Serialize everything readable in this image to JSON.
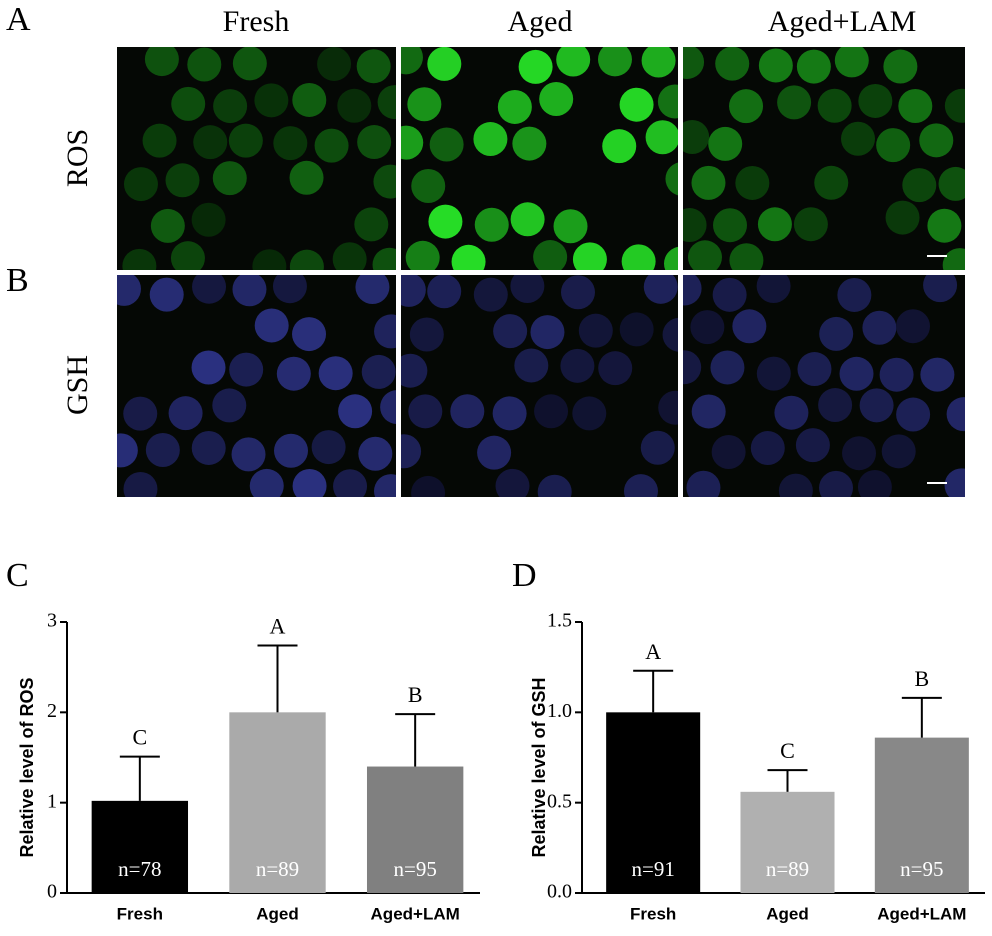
{
  "figure": {
    "panel_labels": [
      "A",
      "B",
      "C",
      "D"
    ],
    "columns": [
      "Fresh",
      "Aged",
      "Aged+LAM"
    ],
    "rows": [
      "ROS",
      "GSH"
    ]
  },
  "chart_data": [
    {
      "type": "bar",
      "ylabel": "Relative level of ROS",
      "categories": [
        "Fresh",
        "Aged",
        "Aged+LAM"
      ],
      "series": [
        {
          "name": "ROS",
          "colors": [
            "#000000",
            "#aaaaaa",
            "#808080"
          ],
          "values": [
            1.02,
            2.0,
            1.4
          ],
          "errors": [
            0.49,
            0.74,
            0.58
          ]
        }
      ],
      "significance_labels": [
        "C",
        "A",
        "B"
      ],
      "n_labels": [
        "n=78",
        "n=89",
        "n=95"
      ],
      "ylim": [
        0,
        3
      ],
      "yticks": [
        0,
        1,
        2,
        3
      ]
    },
    {
      "type": "bar",
      "ylabel": "Relative level of GSH",
      "categories": [
        "Fresh",
        "Aged",
        "Aged+LAM"
      ],
      "series": [
        {
          "name": "GSH",
          "colors": [
            "#000000",
            "#b0b0b0",
            "#888888"
          ],
          "values": [
            1.0,
            0.56,
            0.86
          ],
          "errors": [
            0.23,
            0.12,
            0.22
          ]
        }
      ],
      "significance_labels": [
        "A",
        "C",
        "B"
      ],
      "n_labels": [
        "n=91",
        "n=89",
        "n=95"
      ],
      "ylim": [
        0,
        1.5
      ],
      "yticks": [
        {
          "value": 0,
          "label": "0.0"
        },
        0.5,
        {
          "value": 1,
          "label": "1.0"
        },
        1.5
      ]
    }
  ]
}
